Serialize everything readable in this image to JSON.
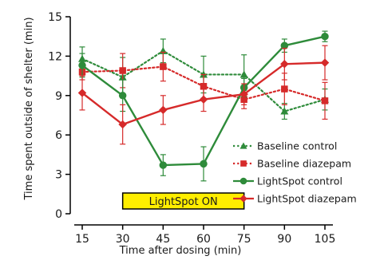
{
  "chart_data": {
    "type": "line",
    "title": "",
    "xlabel": "Time after dosing (min)",
    "ylabel": "Time spent outside of shelter (min)",
    "x": [
      15,
      30,
      45,
      60,
      75,
      90,
      105
    ],
    "xticks": [
      "15",
      "30",
      "45",
      "60",
      "75",
      "90",
      "105"
    ],
    "ylim": [
      0,
      15
    ],
    "yticks": [
      "0",
      "3",
      "6",
      "9",
      "12",
      "15"
    ],
    "grid": false,
    "legend_position": "right",
    "annotation": {
      "label": "LightSpot ON",
      "x_range": [
        30,
        75
      ],
      "color": "#ffee00"
    },
    "series": [
      {
        "name": "Baseline control",
        "color": "#2e8b3a",
        "line": "dotted",
        "marker": "triangle",
        "values": [
          11.8,
          10.4,
          12.4,
          10.6,
          10.6,
          7.8,
          8.7
        ],
        "errors": [
          0.9,
          1.5,
          0.9,
          1.4,
          1.5,
          0.6,
          0.8
        ]
      },
      {
        "name": "Baseline diazepam",
        "color": "#d62a2a",
        "line": "dotted",
        "marker": "square",
        "values": [
          10.8,
          10.9,
          11.2,
          9.7,
          8.7,
          9.5,
          8.6
        ],
        "errors": [
          0.6,
          1.3,
          1.1,
          0.9,
          0.7,
          1.2,
          1.4
        ]
      },
      {
        "name": "LightSpot control",
        "color": "#2e8b3a",
        "line": "solid",
        "marker": "circle",
        "values": [
          11.3,
          9.0,
          3.7,
          3.8,
          9.6,
          12.8,
          13.5
        ],
        "errors": [
          0.9,
          1.2,
          0.8,
          1.3,
          0.7,
          0.5,
          0.4
        ]
      },
      {
        "name": "LightSpot diazepam",
        "color": "#d62a2a",
        "line": "solid",
        "marker": "diamond",
        "values": [
          9.2,
          6.8,
          7.9,
          8.7,
          9.1,
          11.4,
          11.5
        ],
        "errors": [
          1.3,
          1.5,
          1.1,
          0.9,
          0.8,
          1.2,
          1.3
        ]
      }
    ]
  }
}
